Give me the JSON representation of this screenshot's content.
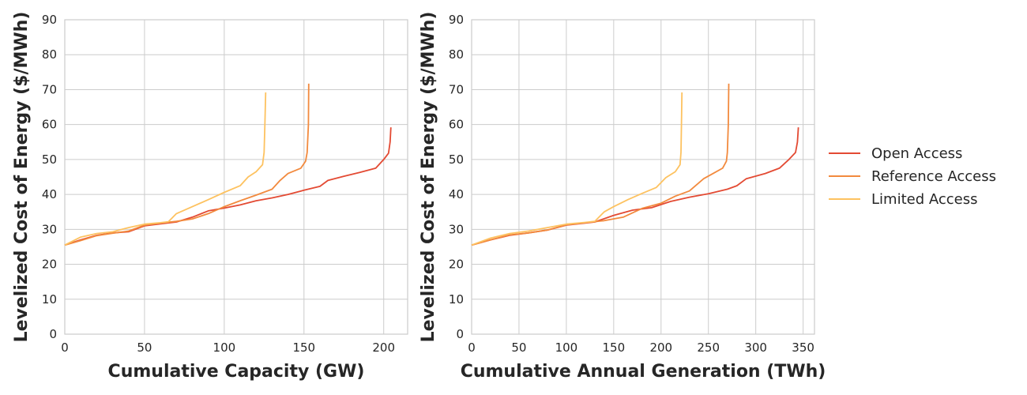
{
  "chart_data": [
    {
      "type": "line",
      "xlabel": "Cumulative Capacity (GW)",
      "ylabel": "Levelized Cost of Energy ($/MWh)",
      "xlim": [
        0,
        215
      ],
      "ylim": [
        0,
        90
      ],
      "xticks": [
        "0",
        "50",
        "100",
        "150",
        "200"
      ],
      "yticks": [
        "0",
        "10",
        "20",
        "30",
        "40",
        "50",
        "60",
        "70",
        "80",
        "90"
      ],
      "grid": true,
      "series": [
        {
          "name": "Open Access",
          "color": "#e34a33",
          "points": [
            [
              0,
              25.5
            ],
            [
              10,
              27
            ],
            [
              20,
              28.3
            ],
            [
              30,
              29
            ],
            [
              40,
              29.3
            ],
            [
              50,
              31
            ],
            [
              60,
              31.6
            ],
            [
              70,
              32.1
            ],
            [
              80,
              33.5
            ],
            [
              90,
              35.3
            ],
            [
              100,
              36.1
            ],
            [
              110,
              37
            ],
            [
              120,
              38.2
            ],
            [
              130,
              39
            ],
            [
              140,
              40
            ],
            [
              150,
              41.2
            ],
            [
              160,
              42.3
            ],
            [
              165,
              44
            ],
            [
              175,
              45.2
            ],
            [
              185,
              46.3
            ],
            [
              195,
              47.5
            ],
            [
              200,
              50
            ],
            [
              203,
              51.8
            ],
            [
              204,
              55
            ],
            [
              204.5,
              59.2
            ]
          ]
        },
        {
          "name": "Reference Access",
          "color": "#f28a3e",
          "points": [
            [
              0,
              25.5
            ],
            [
              10,
              26.8
            ],
            [
              20,
              28.2
            ],
            [
              30,
              28.9
            ],
            [
              40,
              29.5
            ],
            [
              50,
              31.2
            ],
            [
              60,
              31.8
            ],
            [
              70,
              32.3
            ],
            [
              80,
              33
            ],
            [
              90,
              34.5
            ],
            [
              100,
              36.5
            ],
            [
              110,
              38.2
            ],
            [
              120,
              39.8
            ],
            [
              130,
              41.5
            ],
            [
              135,
              44
            ],
            [
              140,
              46
            ],
            [
              148,
              47.5
            ],
            [
              151,
              49.5
            ],
            [
              152,
              52
            ],
            [
              152.8,
              60
            ],
            [
              153,
              71.7
            ]
          ]
        },
        {
          "name": "Limited Access",
          "color": "#fdc260",
          "points": [
            [
              0,
              25.5
            ],
            [
              10,
              27.8
            ],
            [
              20,
              28.8
            ],
            [
              30,
              29.3
            ],
            [
              40,
              30.5
            ],
            [
              50,
              31.5
            ],
            [
              60,
              31.9
            ],
            [
              65,
              32.2
            ],
            [
              70,
              34.5
            ],
            [
              80,
              36.5
            ],
            [
              90,
              38.5
            ],
            [
              100,
              40.6
            ],
            [
              110,
              42.5
            ],
            [
              115,
              45
            ],
            [
              120,
              46.5
            ],
            [
              124,
              48.5
            ],
            [
              125,
              52
            ],
            [
              125.5,
              60
            ],
            [
              126,
              69.2
            ]
          ]
        }
      ]
    },
    {
      "type": "line",
      "xlabel": "Cumulative Annual Generation (TWh)",
      "ylabel": "Levelized Cost of Energy ($/MWh)",
      "xlim": [
        0,
        362
      ],
      "ylim": [
        0,
        90
      ],
      "xticks": [
        "0",
        "50",
        "100",
        "150",
        "200",
        "250",
        "300",
        "350"
      ],
      "yticks": [
        "0",
        "10",
        "20",
        "30",
        "40",
        "50",
        "60",
        "70",
        "80",
        "90"
      ],
      "grid": true,
      "series": [
        {
          "name": "Open Access",
          "color": "#e34a33",
          "points": [
            [
              0,
              25.5
            ],
            [
              20,
              27
            ],
            [
              40,
              28.3
            ],
            [
              60,
              29
            ],
            [
              80,
              29.8
            ],
            [
              100,
              31.2
            ],
            [
              120,
              31.8
            ],
            [
              130,
              32.1
            ],
            [
              150,
              34
            ],
            [
              170,
              35.5
            ],
            [
              190,
              36.2
            ],
            [
              210,
              38
            ],
            [
              230,
              39.2
            ],
            [
              250,
              40.2
            ],
            [
              270,
              41.5
            ],
            [
              280,
              42.5
            ],
            [
              290,
              44.5
            ],
            [
              310,
              46
            ],
            [
              325,
              47.5
            ],
            [
              335,
              50
            ],
            [
              342,
              52
            ],
            [
              344,
              55
            ],
            [
              345,
              59.2
            ]
          ]
        },
        {
          "name": "Reference Access",
          "color": "#f28a3e",
          "points": [
            [
              0,
              25.5
            ],
            [
              20,
              27
            ],
            [
              40,
              28.4
            ],
            [
              60,
              29
            ],
            [
              80,
              29.8
            ],
            [
              100,
              31.3
            ],
            [
              120,
              31.9
            ],
            [
              140,
              32.5
            ],
            [
              160,
              33.5
            ],
            [
              180,
              36
            ],
            [
              200,
              37.5
            ],
            [
              215,
              39.5
            ],
            [
              230,
              41
            ],
            [
              245,
              44.5
            ],
            [
              255,
              46
            ],
            [
              265,
              47.5
            ],
            [
              269,
              49.5
            ],
            [
              270,
              52
            ],
            [
              271,
              60
            ],
            [
              271.5,
              71.7
            ]
          ]
        },
        {
          "name": "Limited Access",
          "color": "#fdc260",
          "points": [
            [
              0,
              25.5
            ],
            [
              20,
              27.5
            ],
            [
              40,
              28.8
            ],
            [
              60,
              29.5
            ],
            [
              80,
              30.5
            ],
            [
              100,
              31.5
            ],
            [
              120,
              32
            ],
            [
              130,
              32.3
            ],
            [
              140,
              35
            ],
            [
              150,
              36.5
            ],
            [
              165,
              38.5
            ],
            [
              180,
              40.3
            ],
            [
              195,
              42
            ],
            [
              205,
              44.8
            ],
            [
              215,
              46.5
            ],
            [
              220,
              48.5
            ],
            [
              221,
              52
            ],
            [
              221.5,
              60
            ],
            [
              222,
              69.2
            ]
          ]
        }
      ]
    }
  ],
  "legend": {
    "position": "center-right",
    "entries": [
      {
        "label": "Open Access",
        "color": "#e34a33"
      },
      {
        "label": "Reference Access",
        "color": "#f28a3e"
      },
      {
        "label": "Limited Access",
        "color": "#fdc260"
      }
    ]
  }
}
